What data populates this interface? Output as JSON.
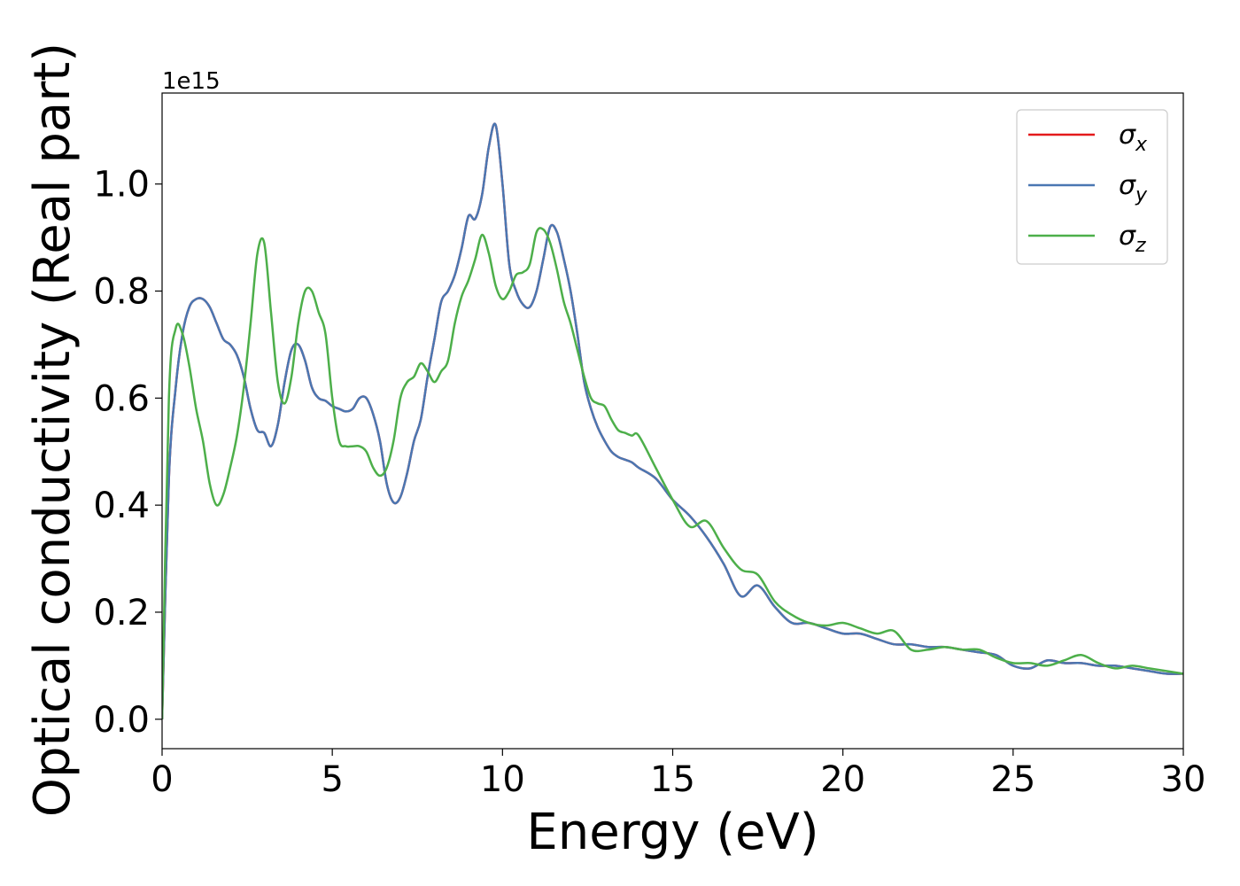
{
  "chart_data": {
    "type": "line",
    "xlabel": "Energy (eV)",
    "ylabel": "Optical conductivity (Real part)",
    "y_offset_label": "1e15",
    "xlim": [
      0,
      30
    ],
    "ylim": [
      -0.055,
      1.17
    ],
    "x_ticks": [
      0,
      5,
      10,
      15,
      20,
      25,
      30
    ],
    "y_ticks": [
      0.0,
      0.2,
      0.4,
      0.6,
      0.8,
      1.0
    ],
    "x_tick_labels": [
      "0",
      "5",
      "10",
      "15",
      "20",
      "25",
      "30"
    ],
    "y_tick_labels": [
      "0.0",
      "0.2",
      "0.4",
      "0.6",
      "0.8",
      "1.0"
    ],
    "grid": false,
    "legend_position": "top-right",
    "series": [
      {
        "name": "σx",
        "legend_base": "σ",
        "legend_sub": "x",
        "color": "#e41a1c",
        "x": [
          0,
          0.2,
          0.4,
          0.6,
          0.8,
          1.0,
          1.2,
          1.4,
          1.6,
          1.8,
          2.0,
          2.2,
          2.4,
          2.6,
          2.8,
          3.0,
          3.2,
          3.4,
          3.6,
          3.8,
          4.0,
          4.2,
          4.4,
          4.6,
          4.8,
          5.0,
          5.2,
          5.4,
          5.6,
          5.8,
          6.0,
          6.2,
          6.4,
          6.6,
          6.8,
          7.0,
          7.2,
          7.4,
          7.6,
          7.8,
          8.0,
          8.2,
          8.4,
          8.6,
          8.8,
          9.0,
          9.2,
          9.4,
          9.6,
          9.8,
          10.0,
          10.2,
          10.4,
          10.6,
          10.8,
          11.0,
          11.2,
          11.4,
          11.6,
          11.8,
          12.0,
          12.2,
          12.4,
          12.6,
          12.8,
          13.0,
          13.2,
          13.4,
          13.6,
          13.8,
          14.0,
          14.5,
          15.0,
          15.5,
          16.0,
          16.5,
          17.0,
          17.5,
          18.0,
          18.5,
          19.0,
          19.5,
          20.0,
          20.5,
          21.0,
          21.5,
          22.0,
          22.5,
          23.0,
          23.5,
          24.0,
          24.5,
          25.0,
          25.5,
          26.0,
          26.5,
          27.0,
          27.5,
          28.0,
          28.5,
          29.0,
          29.5,
          30.0
        ],
        "y": [
          0.0,
          0.45,
          0.62,
          0.72,
          0.77,
          0.785,
          0.785,
          0.77,
          0.74,
          0.71,
          0.7,
          0.68,
          0.64,
          0.58,
          0.54,
          0.535,
          0.51,
          0.55,
          0.63,
          0.69,
          0.7,
          0.67,
          0.62,
          0.6,
          0.595,
          0.585,
          0.58,
          0.575,
          0.58,
          0.6,
          0.6,
          0.57,
          0.52,
          0.44,
          0.405,
          0.415,
          0.46,
          0.52,
          0.56,
          0.64,
          0.71,
          0.78,
          0.8,
          0.83,
          0.88,
          0.94,
          0.935,
          0.98,
          1.07,
          1.11,
          1.0,
          0.85,
          0.8,
          0.775,
          0.77,
          0.8,
          0.86,
          0.92,
          0.91,
          0.86,
          0.8,
          0.72,
          0.63,
          0.58,
          0.545,
          0.52,
          0.5,
          0.49,
          0.485,
          0.48,
          0.47,
          0.45,
          0.41,
          0.38,
          0.34,
          0.29,
          0.23,
          0.25,
          0.21,
          0.18,
          0.18,
          0.17,
          0.16,
          0.16,
          0.15,
          0.14,
          0.14,
          0.135,
          0.135,
          0.13,
          0.125,
          0.12,
          0.1,
          0.095,
          0.11,
          0.105,
          0.105,
          0.1,
          0.1,
          0.095,
          0.09,
          0.085,
          0.085
        ]
      },
      {
        "name": "σy",
        "legend_base": "σ",
        "legend_sub": "y",
        "color": "#4a77b2",
        "x": [
          0,
          0.2,
          0.4,
          0.6,
          0.8,
          1.0,
          1.2,
          1.4,
          1.6,
          1.8,
          2.0,
          2.2,
          2.4,
          2.6,
          2.8,
          3.0,
          3.2,
          3.4,
          3.6,
          3.8,
          4.0,
          4.2,
          4.4,
          4.6,
          4.8,
          5.0,
          5.2,
          5.4,
          5.6,
          5.8,
          6.0,
          6.2,
          6.4,
          6.6,
          6.8,
          7.0,
          7.2,
          7.4,
          7.6,
          7.8,
          8.0,
          8.2,
          8.4,
          8.6,
          8.8,
          9.0,
          9.2,
          9.4,
          9.6,
          9.8,
          10.0,
          10.2,
          10.4,
          10.6,
          10.8,
          11.0,
          11.2,
          11.4,
          11.6,
          11.8,
          12.0,
          12.2,
          12.4,
          12.6,
          12.8,
          13.0,
          13.2,
          13.4,
          13.6,
          13.8,
          14.0,
          14.5,
          15.0,
          15.5,
          16.0,
          16.5,
          17.0,
          17.5,
          18.0,
          18.5,
          19.0,
          19.5,
          20.0,
          20.5,
          21.0,
          21.5,
          22.0,
          22.5,
          23.0,
          23.5,
          24.0,
          24.5,
          25.0,
          25.5,
          26.0,
          26.5,
          27.0,
          27.5,
          28.0,
          28.5,
          29.0,
          29.5,
          30.0
        ],
        "y": [
          0.0,
          0.45,
          0.62,
          0.72,
          0.77,
          0.785,
          0.785,
          0.77,
          0.74,
          0.71,
          0.7,
          0.68,
          0.64,
          0.58,
          0.54,
          0.535,
          0.51,
          0.55,
          0.63,
          0.69,
          0.7,
          0.67,
          0.62,
          0.6,
          0.595,
          0.585,
          0.58,
          0.575,
          0.58,
          0.6,
          0.6,
          0.57,
          0.52,
          0.44,
          0.405,
          0.415,
          0.46,
          0.52,
          0.56,
          0.64,
          0.71,
          0.78,
          0.8,
          0.83,
          0.88,
          0.94,
          0.935,
          0.98,
          1.07,
          1.11,
          1.0,
          0.85,
          0.8,
          0.775,
          0.77,
          0.8,
          0.86,
          0.92,
          0.91,
          0.86,
          0.8,
          0.72,
          0.63,
          0.58,
          0.545,
          0.52,
          0.5,
          0.49,
          0.485,
          0.48,
          0.47,
          0.45,
          0.41,
          0.38,
          0.34,
          0.29,
          0.23,
          0.25,
          0.21,
          0.18,
          0.18,
          0.17,
          0.16,
          0.16,
          0.15,
          0.14,
          0.14,
          0.135,
          0.135,
          0.13,
          0.125,
          0.12,
          0.1,
          0.095,
          0.11,
          0.105,
          0.105,
          0.1,
          0.1,
          0.095,
          0.09,
          0.085,
          0.085
        ]
      },
      {
        "name": "σz",
        "legend_base": "σ",
        "legend_sub": "z",
        "color": "#4daf4a",
        "x": [
          0,
          0.2,
          0.4,
          0.6,
          0.8,
          1.0,
          1.2,
          1.4,
          1.6,
          1.8,
          2.0,
          2.2,
          2.4,
          2.6,
          2.8,
          3.0,
          3.2,
          3.4,
          3.6,
          3.8,
          4.0,
          4.2,
          4.4,
          4.6,
          4.8,
          5.0,
          5.2,
          5.4,
          5.6,
          5.8,
          6.0,
          6.2,
          6.4,
          6.6,
          6.8,
          7.0,
          7.2,
          7.4,
          7.6,
          7.8,
          8.0,
          8.2,
          8.4,
          8.6,
          8.8,
          9.0,
          9.2,
          9.4,
          9.6,
          9.8,
          10.0,
          10.2,
          10.4,
          10.6,
          10.8,
          11.0,
          11.2,
          11.4,
          11.6,
          11.8,
          12.0,
          12.2,
          12.4,
          12.6,
          12.8,
          13.0,
          13.2,
          13.4,
          13.6,
          13.8,
          14.0,
          14.5,
          15.0,
          15.5,
          16.0,
          16.5,
          17.0,
          17.5,
          18.0,
          18.5,
          19.0,
          19.5,
          20.0,
          20.5,
          21.0,
          21.5,
          22.0,
          22.5,
          23.0,
          23.5,
          24.0,
          24.5,
          25.0,
          25.5,
          26.0,
          26.5,
          27.0,
          27.5,
          28.0,
          28.5,
          29.0,
          29.5,
          30.0
        ],
        "y": [
          0.0,
          0.6,
          0.73,
          0.72,
          0.66,
          0.58,
          0.52,
          0.44,
          0.4,
          0.42,
          0.47,
          0.53,
          0.62,
          0.74,
          0.87,
          0.89,
          0.76,
          0.63,
          0.59,
          0.64,
          0.74,
          0.8,
          0.8,
          0.76,
          0.72,
          0.6,
          0.52,
          0.51,
          0.51,
          0.51,
          0.5,
          0.47,
          0.455,
          0.47,
          0.52,
          0.6,
          0.63,
          0.64,
          0.665,
          0.65,
          0.63,
          0.65,
          0.67,
          0.74,
          0.79,
          0.82,
          0.86,
          0.905,
          0.87,
          0.81,
          0.785,
          0.8,
          0.83,
          0.835,
          0.85,
          0.91,
          0.915,
          0.89,
          0.84,
          0.78,
          0.74,
          0.69,
          0.64,
          0.6,
          0.59,
          0.585,
          0.56,
          0.54,
          0.535,
          0.53,
          0.53,
          0.47,
          0.41,
          0.36,
          0.37,
          0.32,
          0.28,
          0.27,
          0.22,
          0.195,
          0.18,
          0.175,
          0.18,
          0.17,
          0.16,
          0.165,
          0.13,
          0.13,
          0.135,
          0.13,
          0.13,
          0.115,
          0.105,
          0.105,
          0.1,
          0.11,
          0.12,
          0.105,
          0.095,
          0.1,
          0.095,
          0.09,
          0.085
        ]
      }
    ]
  }
}
